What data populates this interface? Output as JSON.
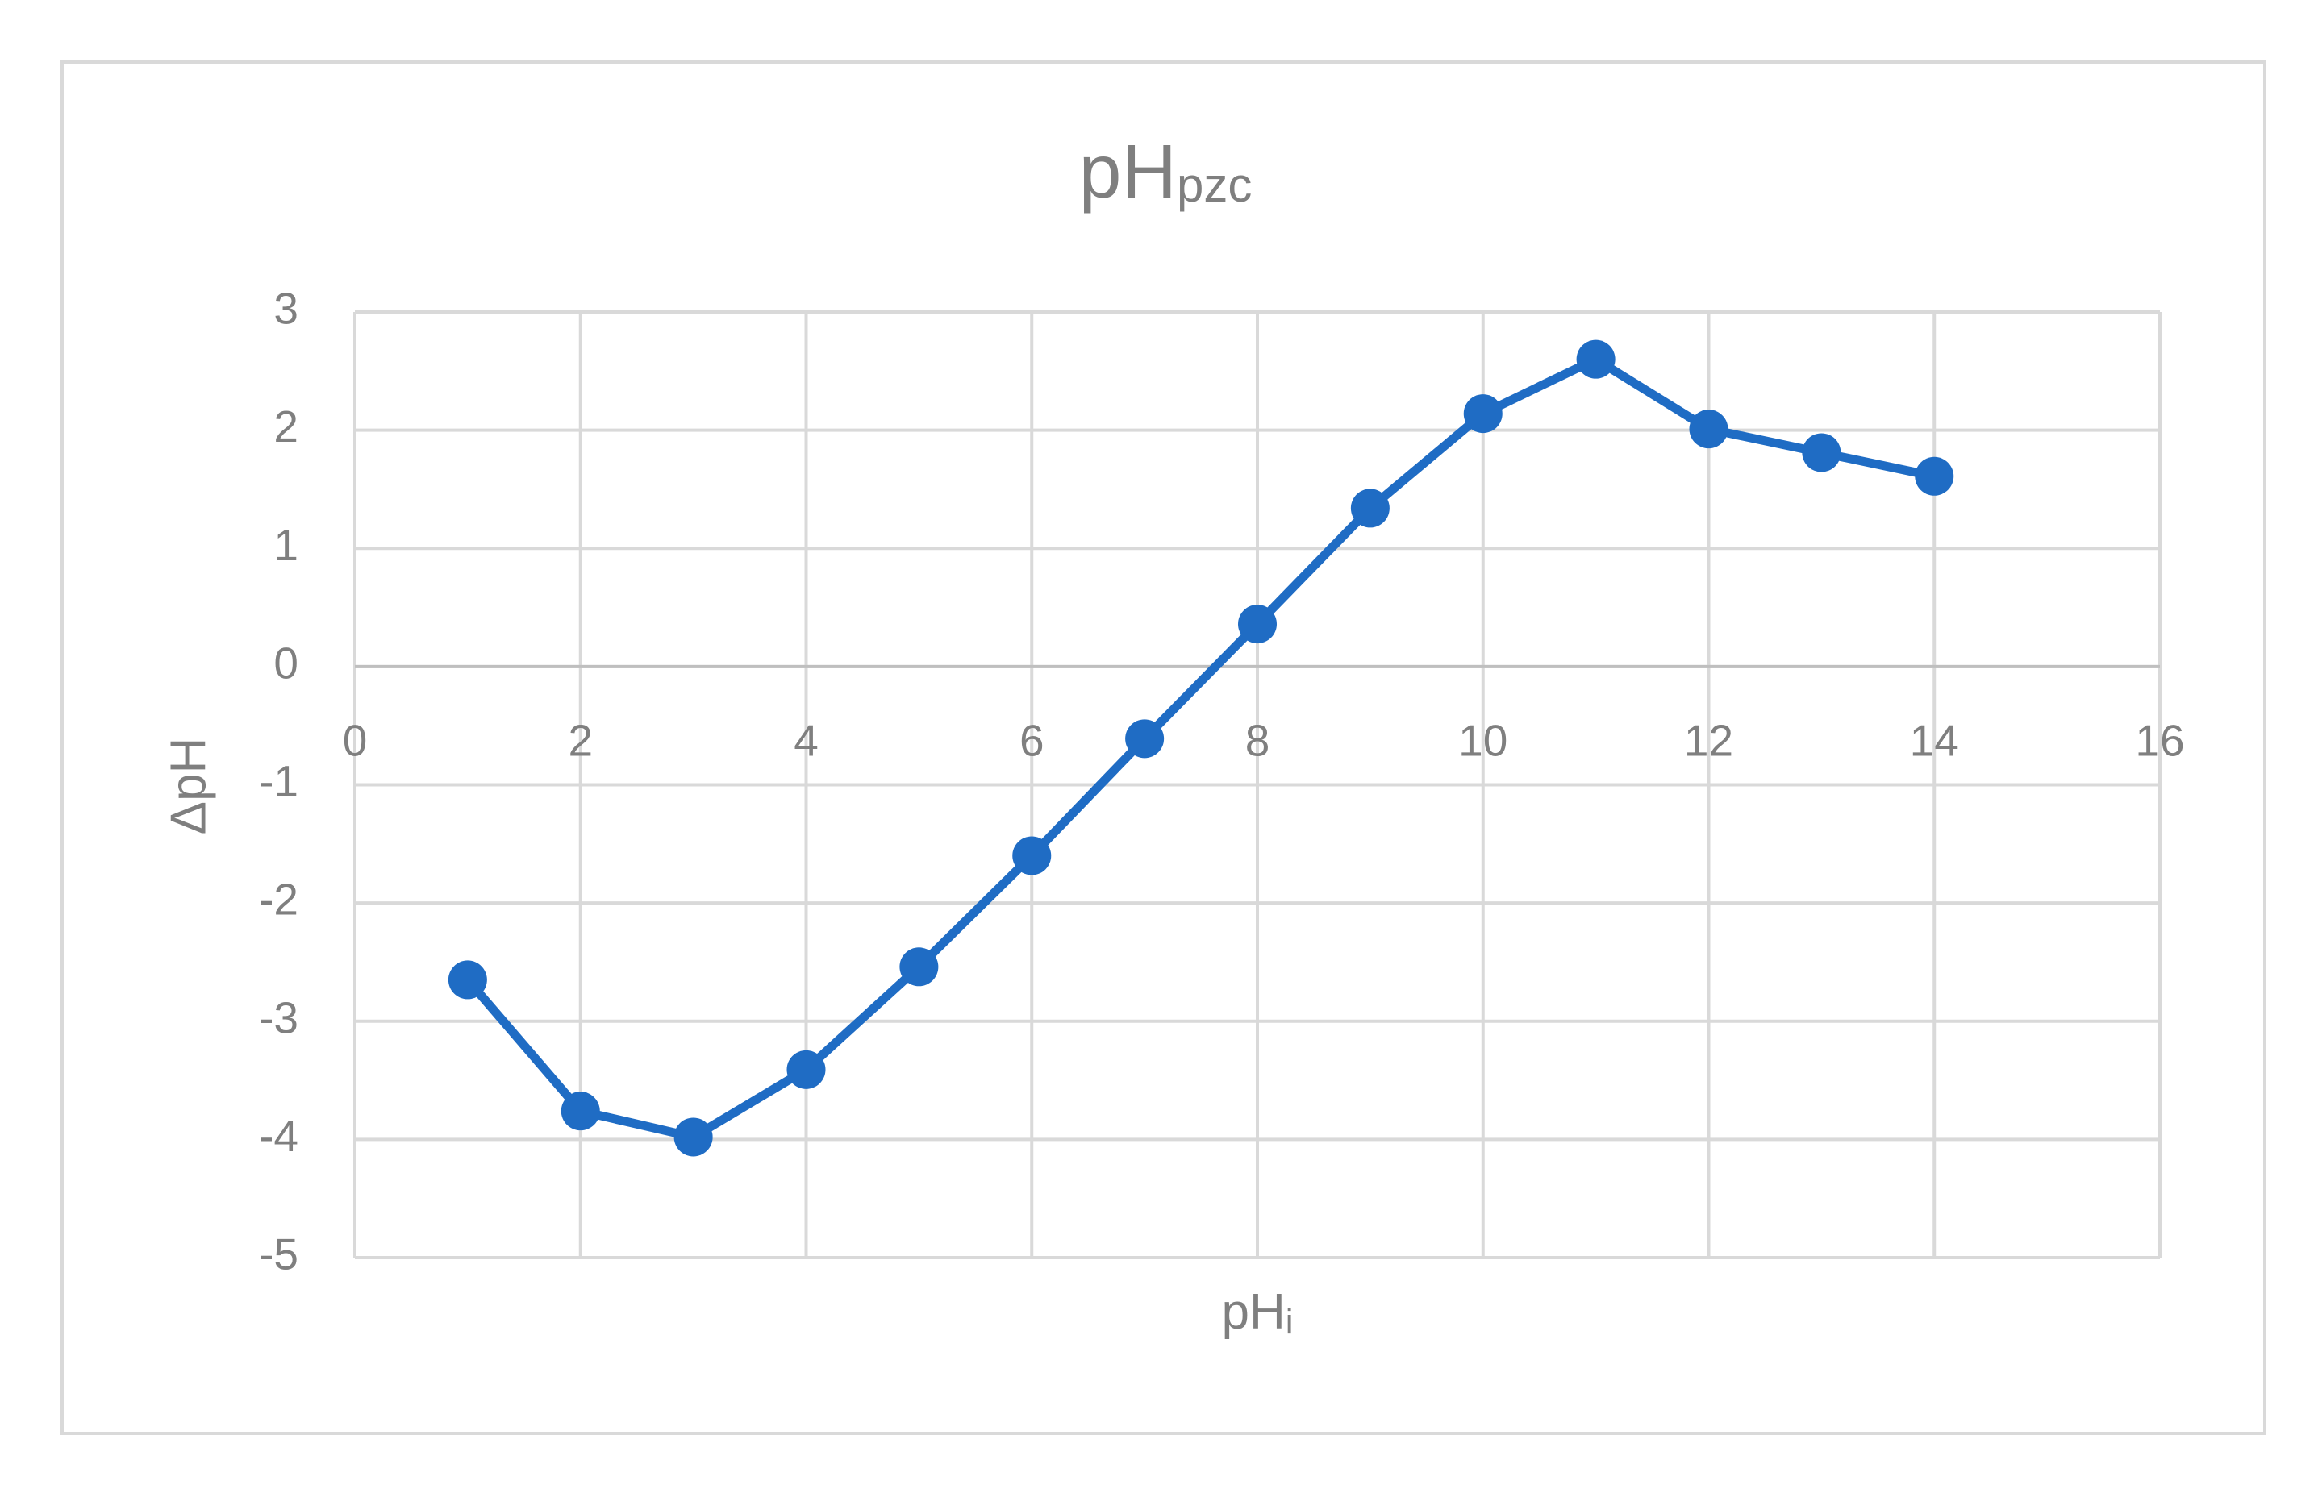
{
  "chart_data": {
    "type": "line",
    "title": "pH",
    "title_subscript": "pzc",
    "x_label": "pH",
    "x_label_subscript": "i",
    "y_label": "ΔpH",
    "x": [
      1,
      2,
      3,
      4,
      5,
      6,
      7,
      8,
      9,
      10,
      11,
      12,
      13,
      14
    ],
    "series": [
      {
        "name": "ΔpH",
        "color": "#1f6cc4",
        "values": [
          -2.65,
          -3.76,
          -3.98,
          -3.41,
          -2.54,
          -1.6,
          -0.61,
          0.36,
          1.34,
          2.14,
          2.6,
          2.01,
          1.81,
          1.61
        ]
      }
    ],
    "xlim": [
      0,
      16
    ],
    "xticks": [
      0,
      2,
      4,
      6,
      8,
      10,
      12,
      14,
      16
    ],
    "ylim": [
      -5,
      3
    ],
    "yticks": [
      -5,
      -4,
      -3,
      -2,
      -1,
      0,
      1,
      2,
      3
    ],
    "grid": true,
    "markers": true
  }
}
